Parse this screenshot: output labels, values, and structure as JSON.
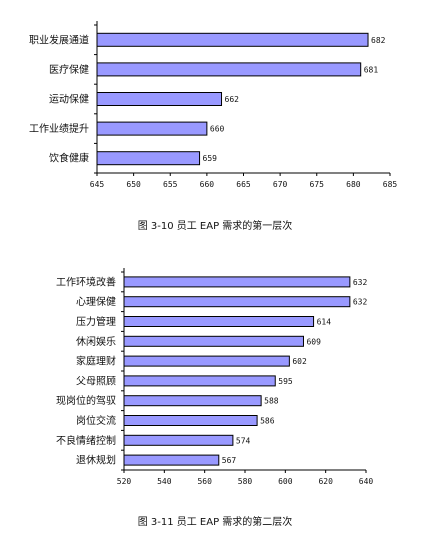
{
  "chart_data": [
    {
      "type": "bar",
      "orientation": "horizontal",
      "title": "图 3-10 员工 EAP 需求的第一层次",
      "categories": [
        "职业发展通道",
        "医疗保健",
        "运动保健",
        "工作业绩提升",
        "饮食健康"
      ],
      "values": [
        682,
        681,
        662,
        660,
        659
      ],
      "xlim": [
        645,
        685
      ],
      "xticks": [
        645,
        650,
        655,
        660,
        665,
        670,
        675,
        680,
        685
      ],
      "tick_labels": [
        "645",
        "650",
        "655",
        "660",
        "665",
        "670",
        "675",
        "680",
        "685"
      ],
      "data_labels": [
        "682",
        "681",
        "662",
        "660",
        "659"
      ],
      "bar_color": "#9999ff",
      "grid": false
    },
    {
      "type": "bar",
      "orientation": "horizontal",
      "title": "图 3-11 员工 EAP 需求的第二层次",
      "categories": [
        "工作环境改善",
        "心理保健",
        "压力管理",
        "休闲娱乐",
        "家庭理财",
        "父母照顾",
        "现岗位的驾驭",
        "岗位交流",
        "不良情绪控制",
        "退休规划"
      ],
      "values": [
        632,
        632,
        614,
        609,
        602,
        595,
        588,
        586,
        574,
        567
      ],
      "xlim": [
        520,
        640
      ],
      "xticks": [
        520,
        540,
        560,
        580,
        600,
        620,
        640
      ],
      "tick_labels": [
        "520",
        "540",
        "560",
        "580",
        "600",
        "620",
        "640"
      ],
      "data_labels": [
        "632",
        "632",
        "614",
        "609",
        "602",
        "595",
        "588",
        "586",
        "574",
        "567"
      ],
      "bar_color": "#9999ff",
      "grid": false
    }
  ]
}
